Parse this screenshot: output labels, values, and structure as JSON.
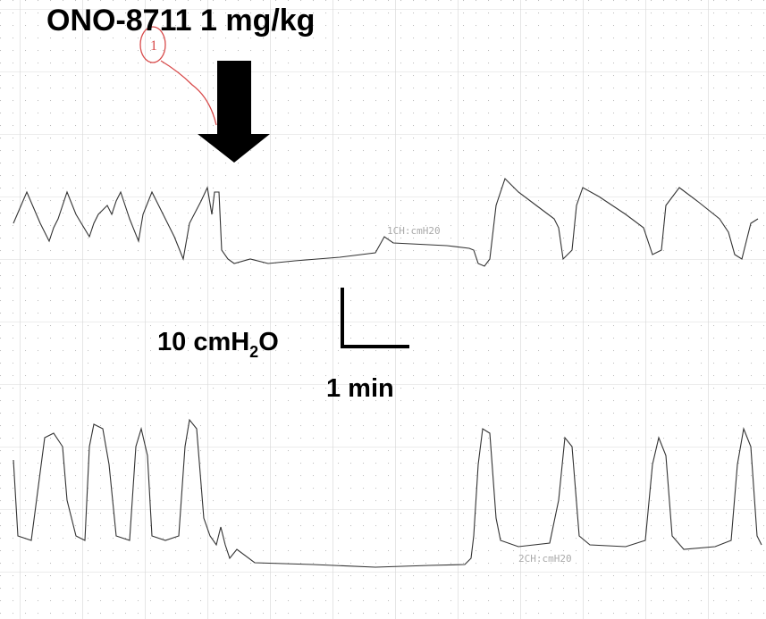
{
  "title": "ONO-8711 1 mg/kg",
  "handwritten_note": "1",
  "channels": [
    "1CH:cmH20",
    "2CH:cmH20"
  ],
  "scale_bar": {
    "pressure_label": [
      "10 cmH",
      "2",
      "O"
    ],
    "time_label": "1 min"
  }
}
